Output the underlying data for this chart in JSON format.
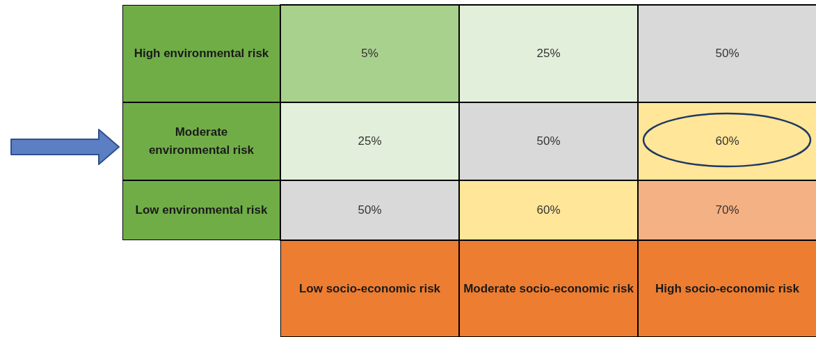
{
  "chart_data": {
    "type": "heatmap",
    "categories": [
      "Low socio-economic risk",
      "Moderate socio-economic risk",
      "High socio-economic risk"
    ],
    "y_categories": [
      "High environmental risk",
      "Moderate environmental risk",
      "Low environmental risk"
    ],
    "cells": [
      [
        5,
        25,
        50
      ],
      [
        25,
        50,
        60
      ],
      [
        50,
        60,
        70
      ]
    ],
    "cell_labels": [
      [
        "5%",
        "25%",
        "50%"
      ],
      [
        "25%",
        "50%",
        "60%"
      ],
      [
        "50%",
        "60%",
        "70%"
      ]
    ],
    "colors": [
      [
        "#a9d18e",
        "#e2efda",
        "#d9d9d9"
      ],
      [
        "#e2efda",
        "#d9d9d9",
        "#ffe699"
      ],
      [
        "#d9d9d9",
        "#ffe699",
        "#f4b183"
      ]
    ]
  }
}
